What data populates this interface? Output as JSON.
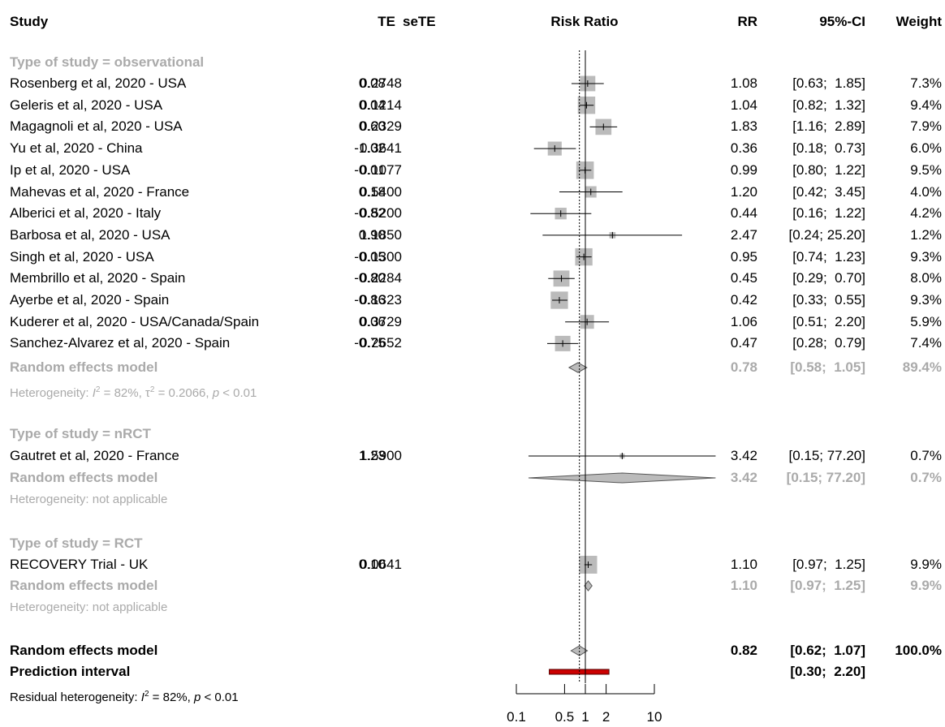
{
  "header": {
    "study": "Study",
    "te": "TE",
    "sete": "seTE",
    "risk_ratio": "Risk Ratio",
    "rr": "RR",
    "ci": "95%-CI",
    "weight": "Weight"
  },
  "chart_data": {
    "type": "forest",
    "x_scale": "log",
    "xlabel": "Risk Ratio",
    "xlim": [
      0.1,
      10
    ],
    "x_ticks": [
      0.1,
      0.5,
      1,
      2,
      10
    ],
    "x_tick_labels": [
      "0.1",
      "0.5",
      "1",
      "2",
      "10"
    ],
    "reference_line": 1,
    "overall_line": 0.82,
    "subgroups": [
      {
        "title": "Type of study = observational",
        "studies": [
          {
            "label": "Rosenberg et al, 2020 - USA",
            "te": "0.08",
            "sete": "0.2748",
            "rr": 1.08,
            "lo": 0.63,
            "hi": 1.85,
            "rr_text": "1.08",
            "ci_text": "[0.63;  1.85]",
            "weight": 7.3,
            "weight_text": "7.3%"
          },
          {
            "label": "Geleris et al, 2020 - USA",
            "te": "0.04",
            "sete": "0.1214",
            "rr": 1.04,
            "lo": 0.82,
            "hi": 1.32,
            "rr_text": "1.04",
            "ci_text": "[0.82;  1.32]",
            "weight": 9.4,
            "weight_text": "9.4%"
          },
          {
            "label": "Magagnoli et al, 2020 - USA",
            "te": "0.60",
            "sete": "0.2329",
            "rr": 1.83,
            "lo": 1.16,
            "hi": 2.89,
            "rr_text": "1.83",
            "ci_text": "[1.16;  2.89]",
            "weight": 7.9,
            "weight_text": "7.9%"
          },
          {
            "label": "Yu et al, 2020 - China",
            "te": "-1.02",
            "sete": "0.3641",
            "rr": 0.36,
            "lo": 0.18,
            "hi": 0.73,
            "rr_text": "0.36",
            "ci_text": "[0.18;  0.73]",
            "weight": 6.0,
            "weight_text": "6.0%"
          },
          {
            "label": "Ip et al, 2020 - USA",
            "te": "-0.01",
            "sete": "0.1077",
            "rr": 0.99,
            "lo": 0.8,
            "hi": 1.22,
            "rr_text": "0.99",
            "ci_text": "[0.80;  1.22]",
            "weight": 9.5,
            "weight_text": "9.5%"
          },
          {
            "label": "Mahevas et al, 2020 - France",
            "te": "0.18",
            "sete": "0.5400",
            "rr": 1.2,
            "lo": 0.42,
            "hi": 3.45,
            "rr_text": "1.20",
            "ci_text": "[0.42;  3.45]",
            "weight": 4.0,
            "weight_text": "4.0%"
          },
          {
            "label": "Alberici et al, 2020 - Italy",
            "te": "-0.82",
            "sete": "0.5200",
            "rr": 0.44,
            "lo": 0.16,
            "hi": 1.22,
            "rr_text": "0.44",
            "ci_text": "[0.16;  1.22]",
            "weight": 4.2,
            "weight_text": "4.2%"
          },
          {
            "label": "Barbosa et al, 2020 - USA",
            "te": "0.90",
            "sete": "1.1850",
            "rr": 2.47,
            "lo": 0.24,
            "hi": 25.2,
            "rr_text": "2.47",
            "ci_text": "[0.24; 25.20]",
            "weight": 1.2,
            "weight_text": "1.2%"
          },
          {
            "label": "Singh et al, 2020 - USA",
            "te": "-0.05",
            "sete": "0.1300",
            "rr": 0.95,
            "lo": 0.74,
            "hi": 1.23,
            "rr_text": "0.95",
            "ci_text": "[0.74;  1.23]",
            "weight": 9.3,
            "weight_text": "9.3%"
          },
          {
            "label": "Membrillo et al, 2020 - Spain",
            "te": "-0.80",
            "sete": "0.2284",
            "rr": 0.45,
            "lo": 0.29,
            "hi": 0.7,
            "rr_text": "0.45",
            "ci_text": "[0.29;  0.70]",
            "weight": 8.0,
            "weight_text": "8.0%"
          },
          {
            "label": "Ayerbe et al, 2020 - Spain",
            "te": "-0.86",
            "sete": "0.1323",
            "rr": 0.42,
            "lo": 0.33,
            "hi": 0.55,
            "rr_text": "0.42",
            "ci_text": "[0.33;  0.55]",
            "weight": 9.3,
            "weight_text": "9.3%"
          },
          {
            "label": "Kuderer et al, 2020 - USA/Canada/Spain",
            "te": "0.06",
            "sete": "0.3729",
            "rr": 1.06,
            "lo": 0.51,
            "hi": 2.2,
            "rr_text": "1.06",
            "ci_text": "[0.51;  2.20]",
            "weight": 5.9,
            "weight_text": "5.9%"
          },
          {
            "label": "Sanchez-Alvarez et al, 2020 - Spain",
            "te": "-0.75",
            "sete": "0.2652",
            "rr": 0.47,
            "lo": 0.28,
            "hi": 0.79,
            "rr_text": "0.47",
            "ci_text": "[0.28;  0.79]",
            "weight": 7.4,
            "weight_text": "7.4%"
          }
        ],
        "model": {
          "label": "Random effects model",
          "rr": 0.78,
          "lo": 0.58,
          "hi": 1.05,
          "rr_text": "0.78",
          "ci_text": "[0.58;  1.05]",
          "weight_text": "89.4%"
        },
        "heterogeneity": {
          "prefix": "Heterogeneity: ",
          "i2_symbol": "I",
          "i2_value": " = 82%, ",
          "tau2_symbol": "τ",
          "tau2_value": " = 0.2066, ",
          "p_symbol": "p",
          "p_value": " < 0.01"
        }
      },
      {
        "title": "Type of study = nRCT",
        "studies": [
          {
            "label": "Gautret et al, 2020 - France",
            "te": "1.23",
            "sete": "1.5900",
            "rr": 3.42,
            "lo": 0.15,
            "hi": 77.2,
            "rr_text": "3.42",
            "ci_text": "[0.15; 77.20]",
            "weight": 0.7,
            "weight_text": "0.7%"
          }
        ],
        "model": {
          "label": "Random effects model",
          "rr": 3.42,
          "lo": 0.15,
          "hi": 77.2,
          "rr_text": "3.42",
          "ci_text": "[0.15; 77.20]",
          "weight_text": "0.7%"
        },
        "heterogeneity_text": "Heterogeneity: not applicable"
      },
      {
        "title": "Type of study = RCT",
        "studies": [
          {
            "label": "RECOVERY Trial - UK",
            "te": "0.10",
            "sete": "0.0641",
            "rr": 1.1,
            "lo": 0.97,
            "hi": 1.25,
            "rr_text": "1.10",
            "ci_text": "[0.97;  1.25]",
            "weight": 9.9,
            "weight_text": "9.9%"
          }
        ],
        "model": {
          "label": "Random effects model",
          "rr": 1.1,
          "lo": 0.97,
          "hi": 1.25,
          "rr_text": "1.10",
          "ci_text": "[0.97;  1.25]",
          "weight_text": "9.9%"
        },
        "heterogeneity_text": "Heterogeneity: not applicable"
      }
    ],
    "overall": {
      "label": "Random effects model",
      "rr": 0.82,
      "lo": 0.62,
      "hi": 1.07,
      "rr_text": "0.82",
      "ci_text": "[0.62;  1.07]",
      "weight_text": "100.0%"
    },
    "prediction_interval": {
      "label": "Prediction interval",
      "lo": 0.3,
      "hi": 2.2,
      "ci_text": "[0.30;  2.20]"
    },
    "residual_heterogeneity": {
      "prefix": "Residual heterogeneity: ",
      "i2_symbol": "I",
      "i2_value": " = 82%, ",
      "p_symbol": "p",
      "p_value": " < 0.01"
    },
    "colors": {
      "square": "#bbbbbb",
      "diamond": "#bbbbbb",
      "prediction": "#cc0000",
      "subgroup_text": "#aaaaaa",
      "line": "#000000"
    }
  }
}
